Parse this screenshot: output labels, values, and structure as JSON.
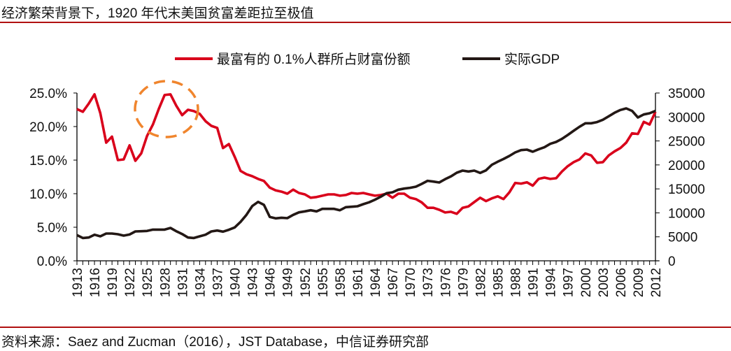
{
  "title": "经济繁荣背景下，1920 年代末美国贫富差距拉至极值",
  "source": "资料来源：Saez and Zucman（2016），JST Database，中信证券研究部",
  "chart_data": {
    "type": "line",
    "x": [
      1913,
      1914,
      1915,
      1916,
      1917,
      1918,
      1919,
      1920,
      1921,
      1922,
      1923,
      1924,
      1925,
      1926,
      1927,
      1928,
      1929,
      1930,
      1931,
      1932,
      1933,
      1934,
      1935,
      1936,
      1937,
      1938,
      1939,
      1940,
      1941,
      1942,
      1943,
      1944,
      1945,
      1946,
      1947,
      1948,
      1949,
      1950,
      1951,
      1952,
      1953,
      1954,
      1955,
      1956,
      1957,
      1958,
      1959,
      1960,
      1961,
      1962,
      1963,
      1964,
      1965,
      1966,
      1967,
      1968,
      1969,
      1970,
      1971,
      1972,
      1973,
      1974,
      1975,
      1976,
      1977,
      1978,
      1979,
      1980,
      1981,
      1982,
      1983,
      1984,
      1985,
      1986,
      1987,
      1988,
      1989,
      1990,
      1991,
      1992,
      1993,
      1994,
      1995,
      1996,
      1997,
      1998,
      1999,
      2000,
      2001,
      2002,
      2003,
      2004,
      2005,
      2006,
      2007,
      2008,
      2009,
      2010,
      2011,
      2012
    ],
    "xticks": [
      "1913",
      "1916",
      "1919",
      "1922",
      "1925",
      "1928",
      "1931",
      "1934",
      "1937",
      "1940",
      "1943",
      "1946",
      "1949",
      "1952",
      "1955",
      "1958",
      "1961",
      "1964",
      "1967",
      "1970",
      "1973",
      "1976",
      "1979",
      "1982",
      "1985",
      "1988",
      "1991",
      "1994",
      "1997",
      "2000",
      "2003",
      "2006",
      "2009",
      "2012"
    ],
    "y_left": {
      "ylim": [
        0,
        25
      ],
      "ticks": [
        "0.0%",
        "5.0%",
        "10.0%",
        "15.0%",
        "20.0%",
        "25.0%"
      ]
    },
    "y_right": {
      "ylim": [
        0,
        35000
      ],
      "ticks": [
        "0",
        "5000",
        "10000",
        "15000",
        "20000",
        "25000",
        "30000",
        "35000"
      ]
    },
    "legend_placement": "top",
    "grid": false,
    "annotation": "dashed orange circle around 1928-1929 peak",
    "series": [
      {
        "name": "最富有的 0.1%人群所占财富份额",
        "axis": "left",
        "color": "#d9001b",
        "unit": "%",
        "values": [
          22.6,
          22.2,
          23.4,
          24.8,
          22.0,
          17.6,
          18.5,
          15.0,
          15.1,
          17.2,
          14.9,
          16.0,
          18.6,
          20.3,
          22.6,
          24.7,
          24.8,
          23.1,
          21.7,
          22.5,
          22.3,
          21.9,
          20.8,
          20.1,
          19.8,
          16.8,
          17.4,
          15.5,
          13.4,
          12.9,
          12.6,
          12.2,
          11.9,
          10.9,
          10.5,
          10.3,
          10.0,
          10.6,
          10.1,
          9.9,
          9.4,
          9.5,
          9.7,
          9.9,
          9.9,
          9.7,
          9.8,
          10.1,
          10.0,
          10.1,
          9.9,
          9.7,
          9.8,
          10.0,
          9.4,
          10.0,
          10.0,
          9.4,
          9.2,
          8.7,
          7.9,
          7.9,
          7.6,
          7.2,
          7.3,
          7.0,
          7.9,
          8.1,
          8.75,
          9.4,
          8.9,
          9.3,
          9.6,
          9.2,
          10.2,
          11.6,
          11.5,
          11.7,
          11.2,
          12.2,
          12.4,
          12.2,
          12.3,
          13.3,
          14.1,
          14.7,
          15.1,
          16.0,
          15.7,
          14.6,
          14.7,
          15.7,
          16.3,
          16.8,
          17.6,
          19.0,
          18.9,
          20.7,
          20.3,
          22.2
        ]
      },
      {
        "name": "实际GDP",
        "axis": "right",
        "color": "#231815",
        "values": [
          5350,
          4760,
          4860,
          5440,
          5100,
          5690,
          5690,
          5540,
          5250,
          5490,
          6130,
          6170,
          6220,
          6510,
          6510,
          6510,
          6850,
          6170,
          5590,
          4860,
          4760,
          5100,
          5440,
          6130,
          6320,
          6080,
          6470,
          6950,
          8120,
          9580,
          11420,
          12300,
          11670,
          9140,
          8850,
          8990,
          8900,
          9580,
          10110,
          10310,
          10550,
          10310,
          10840,
          10840,
          10840,
          10550,
          11180,
          11280,
          11380,
          11810,
          12200,
          12740,
          13370,
          14100,
          14290,
          14830,
          15070,
          15220,
          15460,
          16040,
          16680,
          16530,
          16330,
          17020,
          17600,
          18380,
          18810,
          18620,
          18810,
          18330,
          18860,
          20030,
          20660,
          21240,
          21880,
          22610,
          23090,
          23190,
          22750,
          23240,
          23680,
          24400,
          24790,
          25430,
          26250,
          27130,
          27950,
          28680,
          28680,
          28930,
          29410,
          30140,
          30870,
          31450,
          31790,
          31260,
          29900,
          30530,
          30770,
          31260
        ]
      }
    ]
  }
}
